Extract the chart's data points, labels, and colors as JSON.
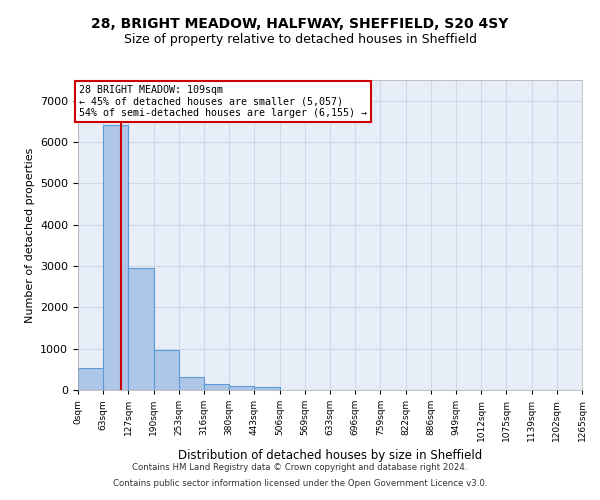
{
  "title_line1": "28, BRIGHT MEADOW, HALFWAY, SHEFFIELD, S20 4SY",
  "title_line2": "Size of property relative to detached houses in Sheffield",
  "xlabel": "Distribution of detached houses by size in Sheffield",
  "ylabel": "Number of detached properties",
  "footer_line1": "Contains HM Land Registry data © Crown copyright and database right 2024.",
  "footer_line2": "Contains public sector information licensed under the Open Government Licence v3.0.",
  "bin_labels": [
    "0sqm",
    "63sqm",
    "127sqm",
    "190sqm",
    "253sqm",
    "316sqm",
    "380sqm",
    "443sqm",
    "506sqm",
    "569sqm",
    "633sqm",
    "696sqm",
    "759sqm",
    "822sqm",
    "886sqm",
    "949sqm",
    "1012sqm",
    "1075sqm",
    "1139sqm",
    "1202sqm",
    "1265sqm"
  ],
  "bar_heights": [
    530,
    6400,
    2950,
    975,
    325,
    150,
    100,
    70,
    0,
    0,
    0,
    0,
    0,
    0,
    0,
    0,
    0,
    0,
    0,
    0
  ],
  "bar_color": "#aec6e8",
  "bar_edge_color": "#5b9bd5",
  "grid_color": "#d0d8e8",
  "background_color": "#e8eef8",
  "vline_color": "#cc0000",
  "vline_x": 1.72,
  "annotation_text_line1": "28 BRIGHT MEADOW: 109sqm",
  "annotation_text_line2": "← 45% of detached houses are smaller (5,057)",
  "annotation_text_line3": "54% of semi-detached houses are larger (6,155) →",
  "annotation_box_color": "#cc0000",
  "ylim": [
    0,
    7500
  ],
  "yticks": [
    0,
    1000,
    2000,
    3000,
    4000,
    5000,
    6000,
    7000
  ]
}
